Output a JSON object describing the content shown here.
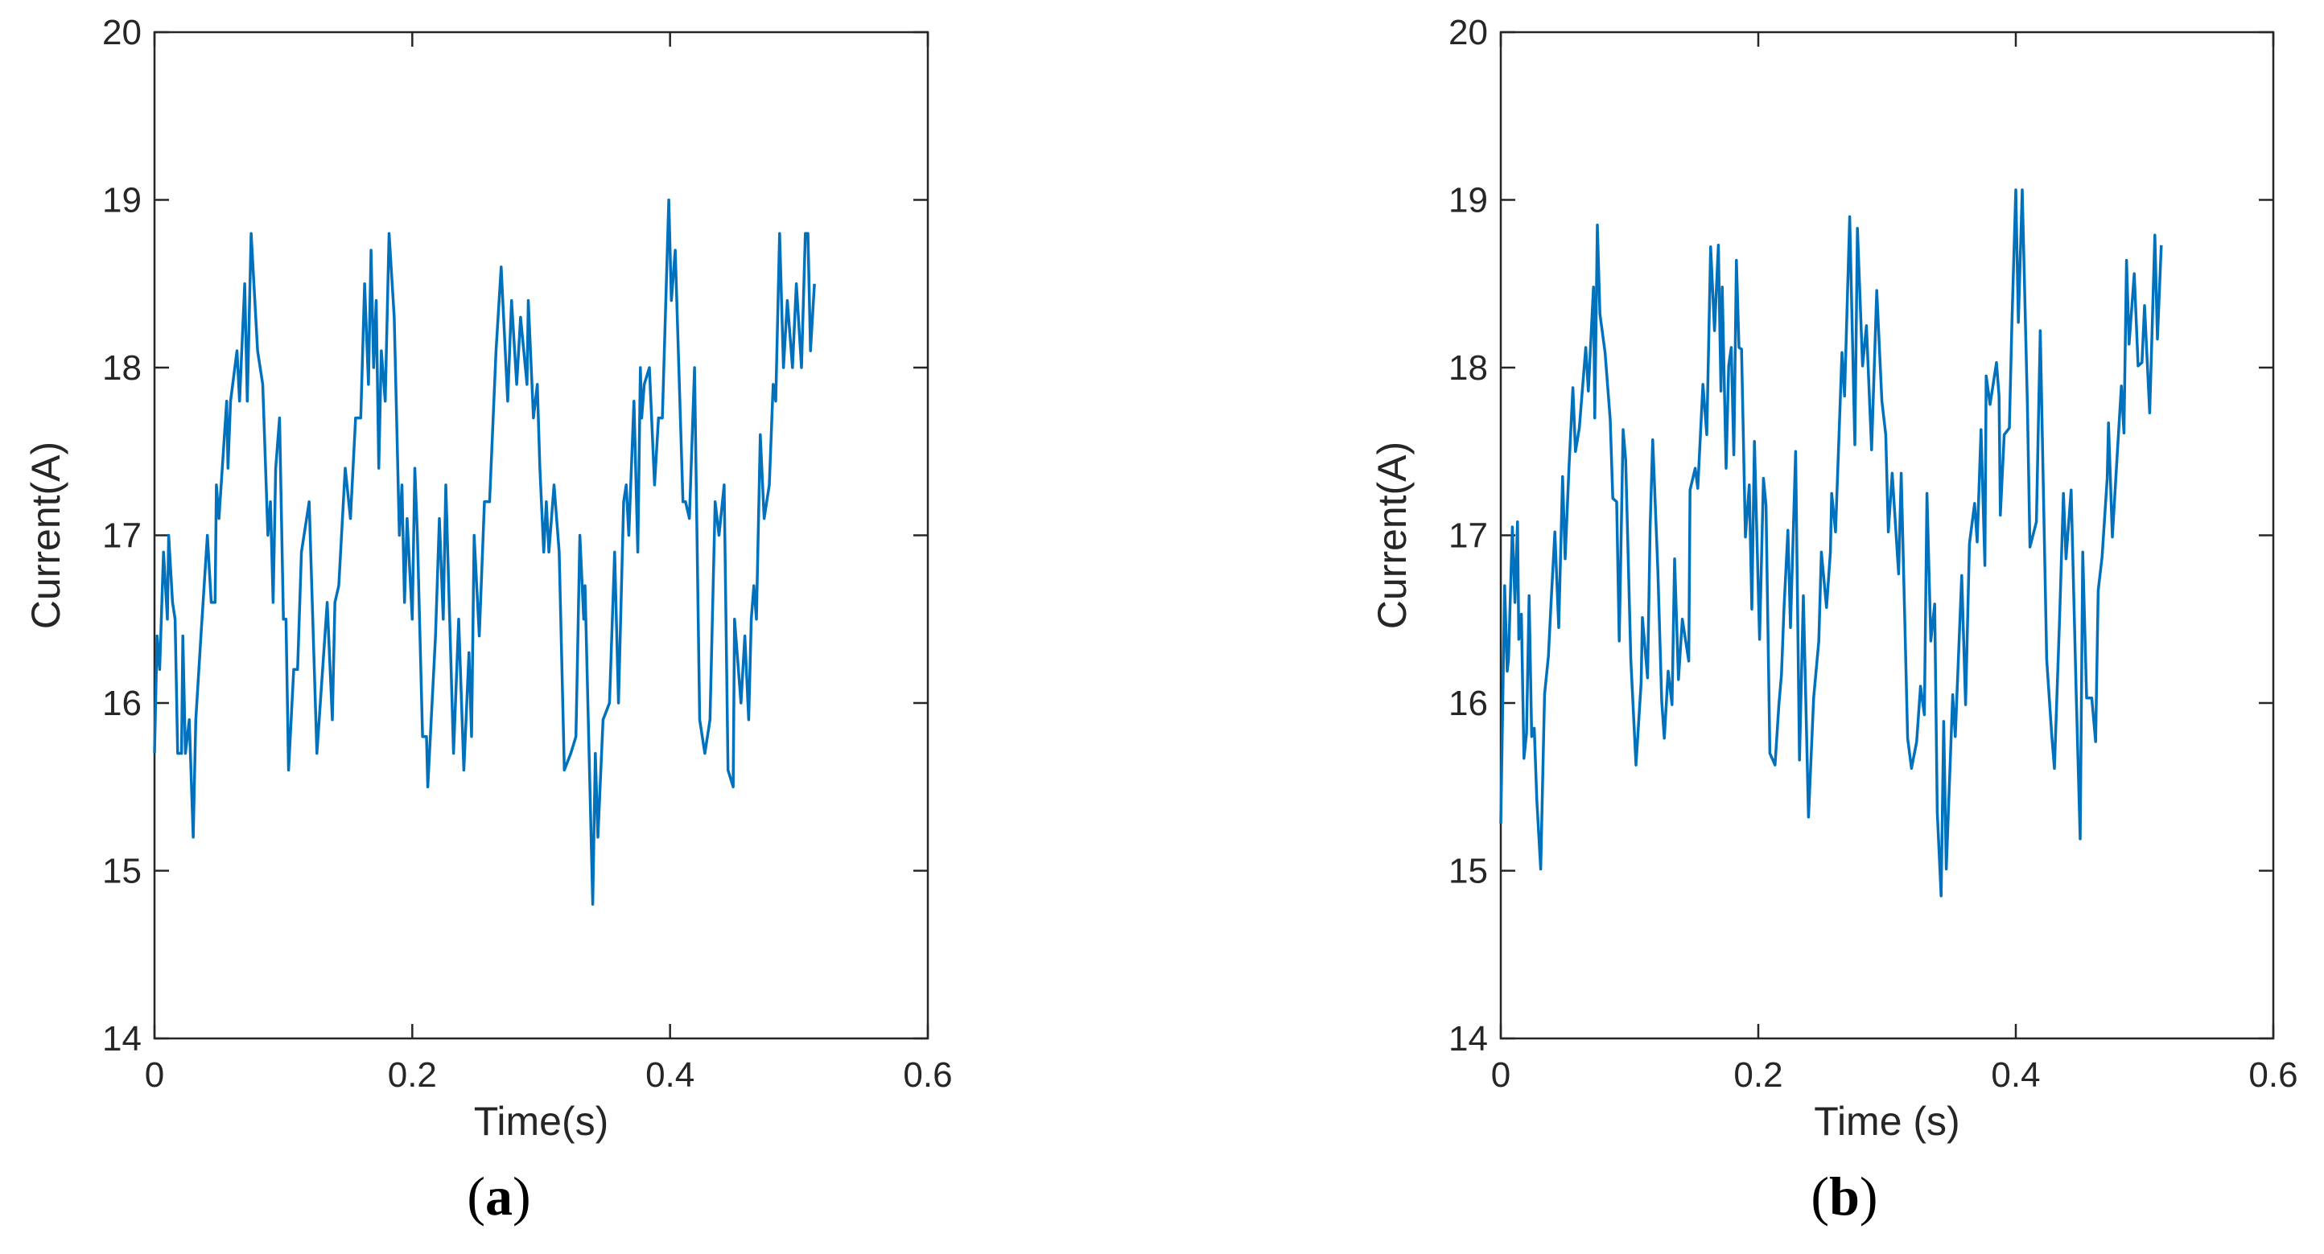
{
  "chart_data": [
    {
      "type": "line",
      "panel_label": "a",
      "xlabel": "Time(s)",
      "ylabel": "Current(A)",
      "xlim": [
        0,
        0.6
      ],
      "ylim": [
        14,
        20
      ],
      "xticks": [
        0,
        0.2,
        0.4,
        0.6
      ],
      "xtick_labels": [
        "0",
        "0.2",
        "0.4",
        "0.6"
      ],
      "yticks": [
        14,
        15,
        16,
        17,
        18,
        19,
        20
      ],
      "ytick_labels": [
        "14",
        "15",
        "16",
        "17",
        "18",
        "19",
        "20"
      ],
      "grid": false,
      "color": "#0072BD",
      "series": [
        {
          "name": "Current",
          "x": [
            0,
            0.002,
            0.004,
            0.007,
            0.01,
            0.011,
            0.014,
            0.016,
            0.018,
            0.021,
            0.022,
            0.024,
            0.027,
            0.03,
            0.032,
            0.036,
            0.041,
            0.044,
            0.047,
            0.048,
            0.05,
            0.056,
            0.057,
            0.059,
            0.064,
            0.066,
            0.07,
            0.072,
            0.075,
            0.08,
            0.084,
            0.088,
            0.09,
            0.092,
            0.094,
            0.097,
            0.1,
            0.102,
            0.104,
            0.108,
            0.111,
            0.114,
            0.12,
            0.126,
            0.134,
            0.138,
            0.14,
            0.143,
            0.148,
            0.152,
            0.156,
            0.16,
            0.163,
            0.166,
            0.168,
            0.17,
            0.172,
            0.174,
            0.176,
            0.179,
            0.182,
            0.186,
            0.19,
            0.192,
            0.194,
            0.196,
            0.2,
            0.202,
            0.204,
            0.208,
            0.211,
            0.212,
            0.218,
            0.221,
            0.224,
            0.226,
            0.232,
            0.236,
            0.24,
            0.244,
            0.246,
            0.248,
            0.252,
            0.256,
            0.26,
            0.265,
            0.269,
            0.274,
            0.277,
            0.281,
            0.284,
            0.289,
            0.29,
            0.294,
            0.297,
            0.299,
            0.302,
            0.304,
            0.306,
            0.31,
            0.314,
            0.318,
            0.323,
            0.327,
            0.33,
            0.333,
            0.334,
            0.34,
            0.342,
            0.344,
            0.348,
            0.353,
            0.357,
            0.36,
            0.364,
            0.366,
            0.368,
            0.372,
            0.375,
            0.377,
            0.378,
            0.38,
            0.384,
            0.388,
            0.391,
            0.394,
            0.399,
            0.401,
            0.404,
            0.41,
            0.412,
            0.415,
            0.419,
            0.423,
            0.427,
            0.431,
            0.435,
            0.438,
            0.442,
            0.445,
            0.449,
            0.45,
            0.455,
            0.458,
            0.461,
            0.463,
            0.465,
            0.467,
            0.47,
            0.473,
            0.477,
            0.48,
            0.482,
            0.485,
            0.488,
            0.491,
            0.495,
            0.498,
            0.502,
            0.505,
            0.507,
            0.509,
            0.512
          ],
          "y": [
            15.7,
            16.4,
            16.2,
            16.9,
            16.5,
            17.0,
            16.6,
            16.5,
            15.7,
            15.7,
            16.4,
            15.7,
            15.9,
            15.2,
            15.9,
            16.4,
            17.0,
            16.6,
            16.6,
            17.3,
            17.1,
            17.8,
            17.4,
            17.8,
            18.1,
            17.8,
            18.5,
            17.8,
            18.8,
            18.1,
            17.9,
            17.0,
            17.2,
            16.6,
            17.4,
            17.7,
            16.5,
            16.5,
            15.6,
            16.2,
            16.2,
            16.9,
            17.2,
            15.7,
            16.6,
            15.9,
            16.6,
            16.7,
            17.4,
            17.1,
            17.7,
            17.7,
            18.5,
            17.9,
            18.7,
            18.0,
            18.4,
            17.4,
            18.1,
            17.8,
            18.8,
            18.3,
            17.0,
            17.3,
            16.6,
            17.1,
            16.5,
            17.4,
            17.0,
            15.8,
            15.8,
            15.5,
            16.4,
            17.1,
            16.5,
            17.3,
            15.7,
            16.5,
            15.6,
            16.3,
            15.8,
            17.0,
            16.4,
            17.2,
            17.2,
            18.1,
            18.6,
            17.8,
            18.4,
            17.9,
            18.3,
            17.9,
            18.4,
            17.7,
            17.9,
            17.4,
            16.9,
            17.2,
            16.9,
            17.3,
            16.9,
            15.6,
            15.7,
            15.8,
            17.0,
            16.5,
            16.7,
            14.8,
            15.7,
            15.2,
            15.9,
            16.0,
            16.9,
            16.0,
            17.2,
            17.3,
            17.0,
            17.8,
            16.9,
            18.0,
            17.7,
            17.9,
            18.0,
            17.3,
            17.7,
            17.7,
            19.0,
            18.4,
            18.7,
            17.2,
            17.2,
            17.1,
            18.0,
            15.9,
            15.7,
            15.9,
            17.2,
            17.0,
            17.3,
            15.6,
            15.5,
            16.5,
            16.0,
            16.4,
            15.9,
            16.5,
            16.7,
            16.5,
            17.6,
            17.1,
            17.3,
            17.9,
            17.8,
            18.8,
            18.0,
            18.4,
            18.0,
            18.5,
            18.0,
            18.8,
            18.8,
            18.1,
            18.5
          ]
        }
      ]
    },
    {
      "type": "line",
      "panel_label": "b",
      "xlabel": "Time (s)",
      "ylabel": "Current(A)",
      "xlim": [
        0,
        0.6
      ],
      "ylim": [
        14,
        20
      ],
      "xticks": [
        0,
        0.2,
        0.4,
        0.6
      ],
      "xtick_labels": [
        "0",
        "0.2",
        "0.4",
        "0.6"
      ],
      "yticks": [
        14,
        15,
        16,
        17,
        18,
        19,
        20
      ],
      "ytick_labels": [
        "14",
        "15",
        "16",
        "17",
        "18",
        "19",
        "20"
      ],
      "grid": false,
      "color": "#0072BD",
      "series": [
        {
          "name": "Current",
          "x": [
            0,
            0.003,
            0.005,
            0.006,
            0.009,
            0.011,
            0.013,
            0.014,
            0.016,
            0.018,
            0.02,
            0.022,
            0.024,
            0.026,
            0.028,
            0.031,
            0.034,
            0.037,
            0.039,
            0.042,
            0.045,
            0.048,
            0.05,
            0.053,
            0.056,
            0.058,
            0.061,
            0.066,
            0.068,
            0.072,
            0.073,
            0.075,
            0.077,
            0.081,
            0.085,
            0.087,
            0.09,
            0.092,
            0.095,
            0.097,
            0.101,
            0.105,
            0.109,
            0.11,
            0.114,
            0.116,
            0.118,
            0.122,
            0.125,
            0.127,
            0.13,
            0.133,
            0.135,
            0.138,
            0.141,
            0.146,
            0.147,
            0.151,
            0.153,
            0.157,
            0.16,
            0.163,
            0.166,
            0.169,
            0.171,
            0.172,
            0.175,
            0.177,
            0.179,
            0.181,
            0.183,
            0.185,
            0.187,
            0.19,
            0.193,
            0.195,
            0.197,
            0.201,
            0.204,
            0.206,
            0.209,
            0.213,
            0.216,
            0.218,
            0.22,
            0.223,
            0.225,
            0.229,
            0.232,
            0.235,
            0.239,
            0.243,
            0.247,
            0.249,
            0.253,
            0.256,
            0.257,
            0.26,
            0.265,
            0.267,
            0.271,
            0.275,
            0.277,
            0.281,
            0.284,
            0.288,
            0.292,
            0.296,
            0.299,
            0.301,
            0.304,
            0.309,
            0.311,
            0.316,
            0.319,
            0.323,
            0.326,
            0.329,
            0.331,
            0.334,
            0.337,
            0.339,
            0.342,
            0.344,
            0.346,
            0.351,
            0.353,
            0.358,
            0.361,
            0.364,
            0.368,
            0.37,
            0.373,
            0.376,
            0.377,
            0.38,
            0.385,
            0.387,
            0.388,
            0.391,
            0.395,
            0.397,
            0.4,
            0.402,
            0.405,
            0.409,
            0.411,
            0.416,
            0.419,
            0.424,
            0.428,
            0.43,
            0.434,
            0.437,
            0.439,
            0.443,
            0.447,
            0.45,
            0.452,
            0.455,
            0.459,
            0.462,
            0.464,
            0.467,
            0.471,
            0.472,
            0.475,
            0.479,
            0.482,
            0.484,
            0.486,
            0.488,
            0.492,
            0.495,
            0.498,
            0.5,
            0.504,
            0.508,
            0.51,
            0.513
          ],
          "y": [
            15.28,
            16.7,
            16.19,
            16.26,
            17.05,
            16.6,
            17.08,
            16.38,
            16.53,
            15.67,
            15.82,
            16.64,
            15.8,
            15.85,
            15.42,
            15.01,
            16.05,
            16.28,
            16.59,
            17.02,
            16.45,
            17.35,
            16.86,
            17.41,
            17.88,
            17.5,
            17.64,
            18.12,
            17.86,
            18.48,
            17.7,
            18.85,
            18.32,
            18.09,
            17.69,
            17.22,
            17.2,
            16.37,
            17.63,
            17.45,
            16.26,
            15.63,
            16.12,
            16.51,
            16.15,
            17.05,
            17.57,
            16.79,
            16.01,
            15.79,
            16.19,
            15.99,
            16.86,
            16.14,
            16.5,
            16.25,
            17.27,
            17.4,
            17.28,
            17.9,
            17.6,
            18.72,
            18.22,
            18.73,
            17.86,
            18.48,
            17.4,
            18.01,
            18.12,
            17.48,
            18.64,
            18.12,
            18.11,
            16.99,
            17.3,
            16.56,
            17.56,
            16.38,
            17.34,
            17.18,
            15.7,
            15.63,
            15.99,
            16.17,
            16.57,
            17.03,
            16.45,
            17.5,
            15.66,
            16.64,
            15.32,
            16.03,
            16.37,
            16.9,
            16.57,
            16.9,
            17.25,
            17.02,
            18.09,
            17.83,
            18.9,
            17.54,
            18.83,
            18.01,
            18.25,
            17.51,
            18.46,
            17.8,
            17.6,
            17.02,
            17.37,
            16.77,
            17.37,
            15.79,
            15.61,
            15.77,
            16.1,
            15.93,
            17.25,
            16.37,
            16.59,
            15.35,
            14.85,
            15.89,
            15.01,
            16.05,
            15.8,
            16.76,
            15.99,
            16.95,
            17.19,
            16.96,
            17.63,
            16.82,
            17.95,
            17.78,
            18.03,
            17.83,
            17.12,
            17.6,
            17.64,
            18.27,
            19.06,
            18.27,
            19.06,
            17.78,
            16.93,
            17.08,
            18.22,
            16.26,
            15.8,
            15.61,
            16.5,
            17.25,
            16.86,
            17.27,
            16.03,
            15.19,
            16.9,
            16.03,
            16.03,
            15.77,
            16.67,
            16.87,
            17.34,
            17.67,
            16.99,
            17.51,
            17.89,
            17.61,
            18.64,
            18.14,
            18.56,
            18.01,
            18.03,
            18.37,
            17.73,
            18.79,
            18.17,
            18.73
          ]
        }
      ]
    }
  ],
  "panels": {
    "a": {
      "open": "(",
      "letter": "a",
      "close": ")"
    },
    "b": {
      "open": "(",
      "letter": "b",
      "close": ")"
    }
  }
}
